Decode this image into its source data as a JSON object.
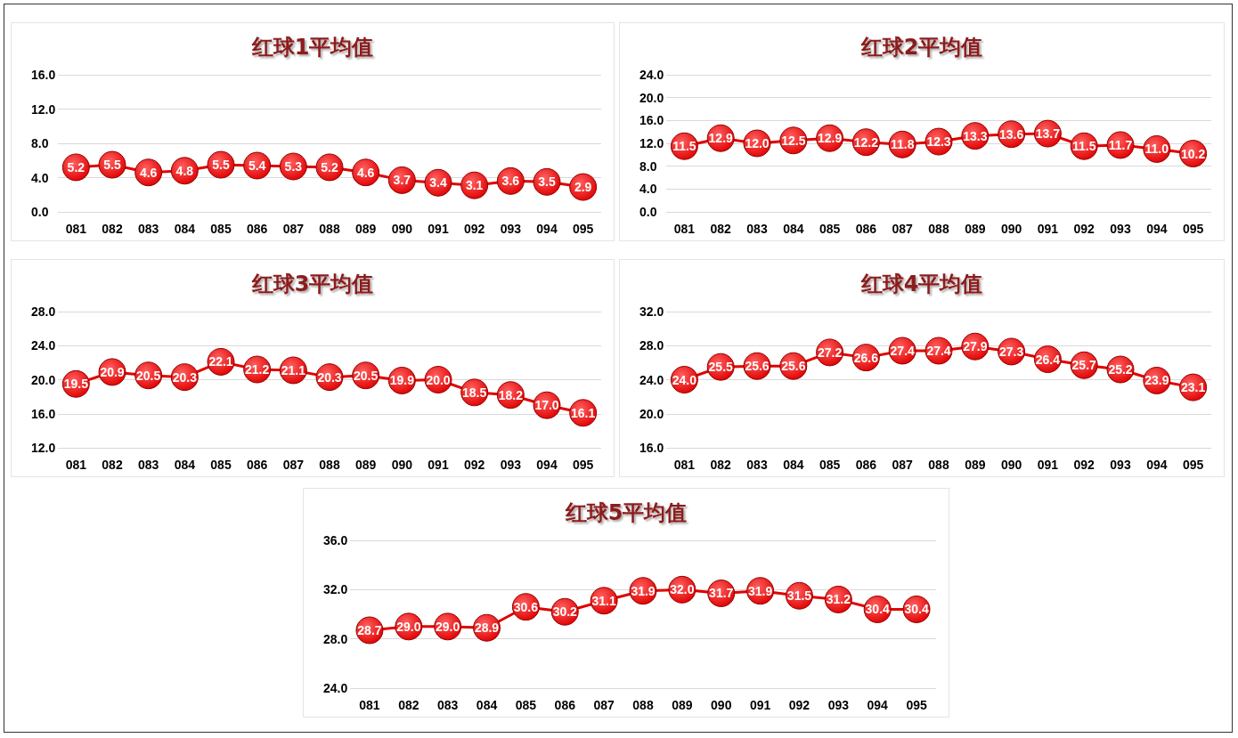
{
  "chart_data": [
    {
      "type": "line",
      "title": "红球1平均值",
      "categories": [
        "081",
        "082",
        "083",
        "084",
        "085",
        "086",
        "087",
        "088",
        "089",
        "090",
        "091",
        "092",
        "093",
        "094",
        "095"
      ],
      "values": [
        5.2,
        5.5,
        4.6,
        4.8,
        5.5,
        5.4,
        5.3,
        5.2,
        4.6,
        3.7,
        3.4,
        3.1,
        3.6,
        3.5,
        2.9
      ],
      "value_labels": [
        "5.2",
        "5.5",
        "4.6",
        "4.8",
        "5.5",
        "5.4",
        "5.3",
        "5.2",
        "4.6",
        "3.7",
        "3.4",
        "3.1",
        "3.6",
        "3.5",
        "2.9"
      ],
      "color": "#e00000",
      "marker": "circle",
      "line_style": "solid",
      "grid": "y",
      "ylim": [
        0,
        16
      ],
      "yticks": [
        {
          "value": 0,
          "label": "0.0"
        },
        {
          "value": 4,
          "label": "4.0"
        },
        {
          "value": 8,
          "label": "8.0"
        },
        {
          "value": 12,
          "label": "12.0"
        },
        {
          "value": 16,
          "label": "16.0"
        }
      ]
    },
    {
      "type": "line",
      "title": "红球2平均值",
      "categories": [
        "081",
        "082",
        "083",
        "084",
        "085",
        "086",
        "087",
        "088",
        "089",
        "090",
        "091",
        "092",
        "093",
        "094",
        "095"
      ],
      "values": [
        11.5,
        12.9,
        12.0,
        12.5,
        12.9,
        12.2,
        11.8,
        12.3,
        13.3,
        13.6,
        13.7,
        11.5,
        11.7,
        11.0,
        10.2
      ],
      "value_labels": [
        "11.5",
        "12.9",
        "12.0",
        "12.5",
        "12.9",
        "12.2",
        "11.8",
        "12.3",
        "13.3",
        "13.6",
        "13.7",
        "11.5",
        "11.7",
        "11.0",
        "10.2"
      ],
      "color": "#e00000",
      "marker": "circle",
      "line_style": "solid",
      "grid": "y",
      "ylim": [
        0,
        24
      ],
      "yticks": [
        {
          "value": 0,
          "label": "0.0"
        },
        {
          "value": 4,
          "label": "4.0"
        },
        {
          "value": 8,
          "label": "8.0"
        },
        {
          "value": 12,
          "label": "12.0"
        },
        {
          "value": 16,
          "label": "16.0"
        },
        {
          "value": 20,
          "label": "20.0"
        },
        {
          "value": 24,
          "label": "24.0"
        }
      ]
    },
    {
      "type": "line",
      "title": "红球3平均值",
      "categories": [
        "081",
        "082",
        "083",
        "084",
        "085",
        "086",
        "087",
        "088",
        "089",
        "090",
        "091",
        "092",
        "093",
        "094",
        "095"
      ],
      "values": [
        19.5,
        20.9,
        20.5,
        20.3,
        22.1,
        21.2,
        21.1,
        20.3,
        20.5,
        19.9,
        20.0,
        18.5,
        18.2,
        17.0,
        16.1
      ],
      "value_labels": [
        "19.5",
        "20.9",
        "20.5",
        "20.3",
        "22.1",
        "21.2",
        "21.1",
        "20.3",
        "20.5",
        "19.9",
        "20.0",
        "18.5",
        "18.2",
        "17.0",
        "16.1"
      ],
      "color": "#e00000",
      "marker": "circle",
      "line_style": "solid",
      "grid": "y",
      "ylim": [
        12,
        28
      ],
      "yticks": [
        {
          "value": 12,
          "label": "12.0"
        },
        {
          "value": 16,
          "label": "16.0"
        },
        {
          "value": 20,
          "label": "20.0"
        },
        {
          "value": 24,
          "label": "24.0"
        },
        {
          "value": 28,
          "label": "28.0"
        }
      ]
    },
    {
      "type": "line",
      "title": "红球4平均值",
      "categories": [
        "081",
        "082",
        "083",
        "084",
        "085",
        "086",
        "087",
        "088",
        "089",
        "090",
        "091",
        "092",
        "093",
        "094",
        "095"
      ],
      "values": [
        24.0,
        25.5,
        25.6,
        25.6,
        27.2,
        26.6,
        27.4,
        27.4,
        27.9,
        27.3,
        26.4,
        25.7,
        25.2,
        23.9,
        23.1
      ],
      "value_labels": [
        "24.0",
        "25.5",
        "25.6",
        "25.6",
        "27.2",
        "26.6",
        "27.4",
        "27.4",
        "27.9",
        "27.3",
        "26.4",
        "25.7",
        "25.2",
        "23.9",
        "23.1"
      ],
      "color": "#e00000",
      "marker": "circle",
      "line_style": "solid",
      "grid": "y",
      "ylim": [
        16,
        32
      ],
      "yticks": [
        {
          "value": 16,
          "label": "16.0"
        },
        {
          "value": 20,
          "label": "20.0"
        },
        {
          "value": 24,
          "label": "24.0"
        },
        {
          "value": 28,
          "label": "28.0"
        },
        {
          "value": 32,
          "label": "32.0"
        }
      ]
    },
    {
      "type": "line",
      "title": "红球5平均值",
      "categories": [
        "081",
        "082",
        "083",
        "084",
        "085",
        "086",
        "087",
        "088",
        "089",
        "090",
        "091",
        "092",
        "093",
        "094",
        "095"
      ],
      "values": [
        28.7,
        29.0,
        29.0,
        28.9,
        30.6,
        30.2,
        31.1,
        31.9,
        32.0,
        31.7,
        31.9,
        31.5,
        31.2,
        30.4,
        30.4
      ],
      "value_labels": [
        "28.7",
        "29.0",
        "29.0",
        "28.9",
        "30.6",
        "30.2",
        "31.1",
        "31.9",
        "32.0",
        "31.7",
        "31.9",
        "31.5",
        "31.2",
        "30.4",
        "30.4"
      ],
      "color": "#e00000",
      "marker": "circle",
      "line_style": "solid",
      "grid": "y",
      "ylim": [
        24,
        36
      ],
      "yticks": [
        {
          "value": 24,
          "label": "24.0"
        },
        {
          "value": 28,
          "label": "28.0"
        },
        {
          "value": 32,
          "label": "32.0"
        },
        {
          "value": 36,
          "label": "36.0"
        }
      ]
    }
  ]
}
